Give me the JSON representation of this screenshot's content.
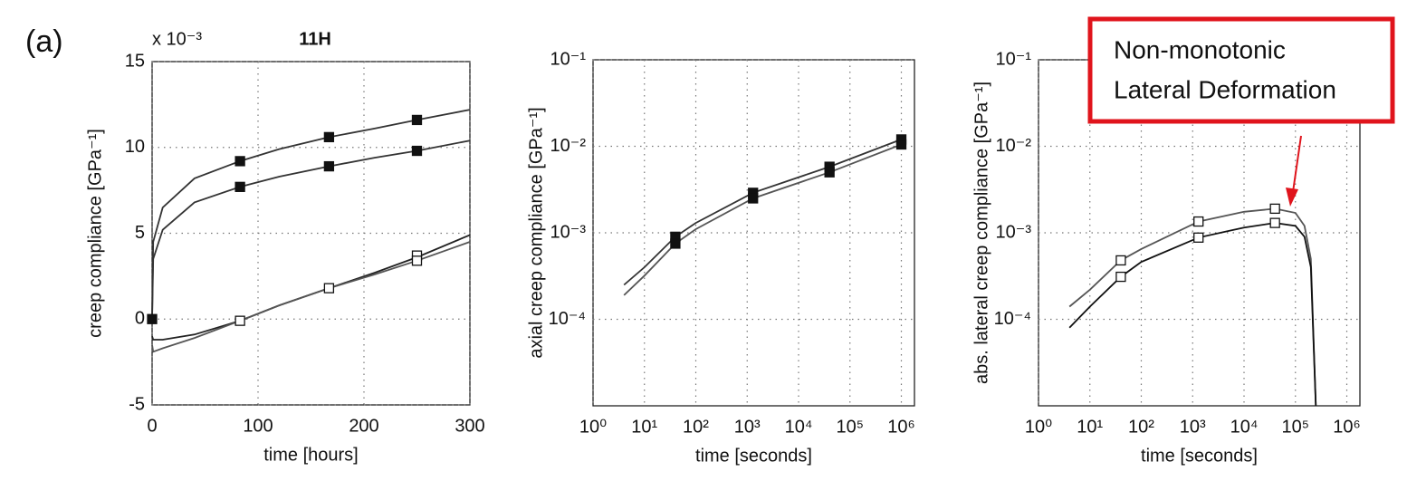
{
  "panel_label": "(a)",
  "annotation": [
    "Non-monotonic",
    "Lateral Deformation"
  ],
  "chart_data": [
    {
      "type": "line",
      "title": "11H",
      "y_scale_label": "x 10⁻³",
      "xlabel": "time [hours]",
      "ylabel": "creep compliance [GPa⁻¹]",
      "xlim": [
        0,
        300
      ],
      "ylim": [
        -5,
        15
      ],
      "xticks": [
        0,
        100,
        200,
        300
      ],
      "yticks": [
        -5,
        0,
        5,
        10,
        15
      ],
      "grid": true,
      "series": [
        {
          "mode": "line",
          "color": "#333333",
          "x": [
            0,
            1,
            10,
            40,
            83,
            120,
            167,
            210,
            250,
            300
          ],
          "values": [
            0,
            4.5,
            6.5,
            8.2,
            9.2,
            9.9,
            10.6,
            11.1,
            11.6,
            12.2
          ]
        },
        {
          "mode": "line",
          "color": "#333333",
          "x": [
            0,
            1,
            10,
            40,
            83,
            120,
            167,
            210,
            250,
            300
          ],
          "values": [
            0,
            3.5,
            5.2,
            6.8,
            7.7,
            8.3,
            8.9,
            9.4,
            9.8,
            10.4
          ]
        },
        {
          "mode": "line",
          "color": "#222222",
          "x": [
            0,
            1,
            10,
            40,
            83,
            120,
            167,
            210,
            250,
            300
          ],
          "values": [
            -1,
            -1.2,
            -1.2,
            -0.9,
            -0.1,
            0.8,
            1.8,
            2.7,
            3.6,
            4.9
          ]
        },
        {
          "mode": "line",
          "color": "#555555",
          "x": [
            0,
            1,
            10,
            40,
            83,
            120,
            167,
            210,
            250,
            300
          ],
          "values": [
            -1.5,
            -1.9,
            -1.7,
            -1.1,
            -0.1,
            0.8,
            1.8,
            2.6,
            3.4,
            4.5
          ]
        },
        {
          "mode": "markers",
          "marker": "filled",
          "color": "#111111",
          "x": [
            0,
            83,
            167,
            250,
            83,
            167,
            250
          ],
          "values": [
            0,
            9.2,
            10.6,
            11.6,
            7.7,
            8.9,
            9.8
          ]
        },
        {
          "mode": "markers",
          "marker": "open",
          "color": "#111111",
          "x": [
            83,
            167,
            250,
            250
          ],
          "values": [
            -0.1,
            1.8,
            3.7,
            3.4
          ]
        }
      ]
    },
    {
      "type": "line",
      "xscale": "log",
      "yscale": "log",
      "xlabel": "time [seconds]",
      "ylabel": "axial creep compliance [GPa⁻¹]",
      "xlim": [
        1,
        1800000
      ],
      "ylim": [
        1e-05,
        0.1
      ],
      "xticks": [
        {
          "value": 1,
          "label": "10⁰"
        },
        {
          "value": 10,
          "label": "10¹"
        },
        {
          "value": 100,
          "label": "10²"
        },
        {
          "value": 1000,
          "label": "10³"
        },
        {
          "value": 10000,
          "label": "10⁴"
        },
        {
          "value": 100000,
          "label": "10⁵"
        },
        {
          "value": 1000000,
          "label": "10⁶"
        }
      ],
      "yticks": [
        {
          "value": 0.0001,
          "label": "10⁻⁴"
        },
        {
          "value": 0.001,
          "label": "10⁻³"
        },
        {
          "value": 0.01,
          "label": "10⁻²"
        },
        {
          "value": 0.1,
          "label": "10⁻¹"
        }
      ],
      "grid": true,
      "series": [
        {
          "mode": "line",
          "color": "#333333",
          "x": [
            4,
            10,
            40,
            100,
            1300,
            40000,
            1000000
          ],
          "values": [
            0.00025,
            0.0004,
            0.0009,
            0.0013,
            0.0029,
            0.0058,
            0.012
          ]
        },
        {
          "mode": "line",
          "color": "#555555",
          "x": [
            4,
            10,
            40,
            100,
            1300,
            40000,
            1000000
          ],
          "values": [
            0.00019,
            0.00032,
            0.00075,
            0.0011,
            0.0025,
            0.005,
            0.0105
          ]
        },
        {
          "mode": "markers",
          "marker": "filled",
          "color": "#111111",
          "x": [
            40,
            1300,
            40000,
            1000000,
            40,
            1300,
            40000,
            1000000
          ],
          "values": [
            0.0009,
            0.0029,
            0.0058,
            0.012,
            0.00075,
            0.0025,
            0.005,
            0.0105
          ]
        }
      ]
    },
    {
      "type": "line",
      "xscale": "log",
      "yscale": "log",
      "xlabel": "time [seconds]",
      "ylabel": "abs. lateral creep compliance [GPa⁻¹]",
      "xlim": [
        1,
        1800000
      ],
      "ylim": [
        1e-05,
        0.1
      ],
      "xticks": [
        {
          "value": 1,
          "label": "10⁰"
        },
        {
          "value": 10,
          "label": "10¹"
        },
        {
          "value": 100,
          "label": "10²"
        },
        {
          "value": 1000,
          "label": "10³"
        },
        {
          "value": 10000,
          "label": "10⁴"
        },
        {
          "value": 100000,
          "label": "10⁵"
        },
        {
          "value": 1000000,
          "label": "10⁶"
        }
      ],
      "yticks": [
        {
          "value": 0.0001,
          "label": "10⁻⁴"
        },
        {
          "value": 0.001,
          "label": "10⁻³"
        },
        {
          "value": 0.01,
          "label": "10⁻²"
        },
        {
          "value": 0.1,
          "label": "10⁻¹"
        }
      ],
      "grid": true,
      "series": [
        {
          "mode": "line",
          "color": "#555555",
          "x": [
            4,
            10,
            40,
            100,
            1300,
            10000,
            40000,
            100000,
            150000,
            200000,
            250000
          ],
          "values": [
            0.00014,
            0.00022,
            0.00048,
            0.00065,
            0.00135,
            0.00175,
            0.0019,
            0.0017,
            0.0012,
            0.0005,
            1e-05
          ]
        },
        {
          "mode": "line",
          "color": "#111111",
          "x": [
            4,
            10,
            40,
            100,
            1300,
            10000,
            40000,
            100000,
            150000,
            200000,
            250000
          ],
          "values": [
            8e-05,
            0.00014,
            0.00031,
            0.00046,
            0.00088,
            0.00115,
            0.0013,
            0.0012,
            0.0009,
            0.0004,
            1e-05
          ]
        },
        {
          "mode": "markers",
          "marker": "open",
          "color": "#111111",
          "x": [
            40,
            1300,
            40000,
            40,
            1300,
            40000
          ],
          "values": [
            0.00048,
            0.00135,
            0.0019,
            0.00031,
            0.00088,
            0.0013
          ]
        }
      ]
    }
  ]
}
